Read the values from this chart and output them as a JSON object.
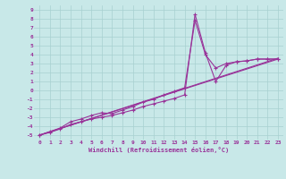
{
  "xlabel": "Windchill (Refroidissement éolien,°C)",
  "background_color": "#c8e8e8",
  "grid_color": "#a8d0d0",
  "line_color": "#993399",
  "xlim": [
    -0.5,
    23.5
  ],
  "ylim": [
    -5.5,
    9.5
  ],
  "xticks": [
    0,
    1,
    2,
    3,
    4,
    5,
    6,
    7,
    8,
    9,
    10,
    11,
    12,
    13,
    14,
    15,
    16,
    17,
    18,
    19,
    20,
    21,
    22,
    23
  ],
  "yticks": [
    -5,
    -4,
    -3,
    -2,
    -1,
    0,
    1,
    2,
    3,
    4,
    5,
    6,
    7,
    8,
    9
  ],
  "line1_x": [
    0,
    1,
    2,
    3,
    4,
    5,
    6,
    7,
    8,
    9,
    10,
    11,
    12,
    13,
    14,
    15,
    16,
    17,
    18,
    19,
    20,
    21,
    22,
    23
  ],
  "line1_y": [
    -5,
    -4.7,
    -4.3,
    -3.8,
    -3.5,
    -3.2,
    -3.0,
    -2.8,
    -2.5,
    -2.2,
    -1.8,
    -1.5,
    -1.2,
    -0.9,
    -0.5,
    8.5,
    4.2,
    1.0,
    2.8,
    3.2,
    3.3,
    3.5,
    3.5,
    3.5
  ],
  "line2_x": [
    0,
    1,
    2,
    3,
    4,
    5,
    6,
    7,
    8,
    9,
    10,
    11,
    12,
    13,
    14,
    15,
    16,
    17,
    18,
    19,
    20,
    21,
    22,
    23
  ],
  "line2_y": [
    -5,
    -4.6,
    -4.2,
    -3.5,
    -3.2,
    -2.8,
    -2.5,
    -2.6,
    -2.2,
    -1.8,
    -1.3,
    -1.0,
    -0.5,
    -0.1,
    0.3,
    7.8,
    4.0,
    2.5,
    3.0,
    3.2,
    3.3,
    3.5,
    3.5,
    3.5
  ],
  "line3_x": [
    0,
    23
  ],
  "line3_y": [
    -5,
    3.5
  ],
  "line4_x": [
    0,
    23
  ],
  "line4_y": [
    -5,
    3.6
  ],
  "tick_fontsize": 4.5,
  "xlabel_fontsize": 5.0
}
